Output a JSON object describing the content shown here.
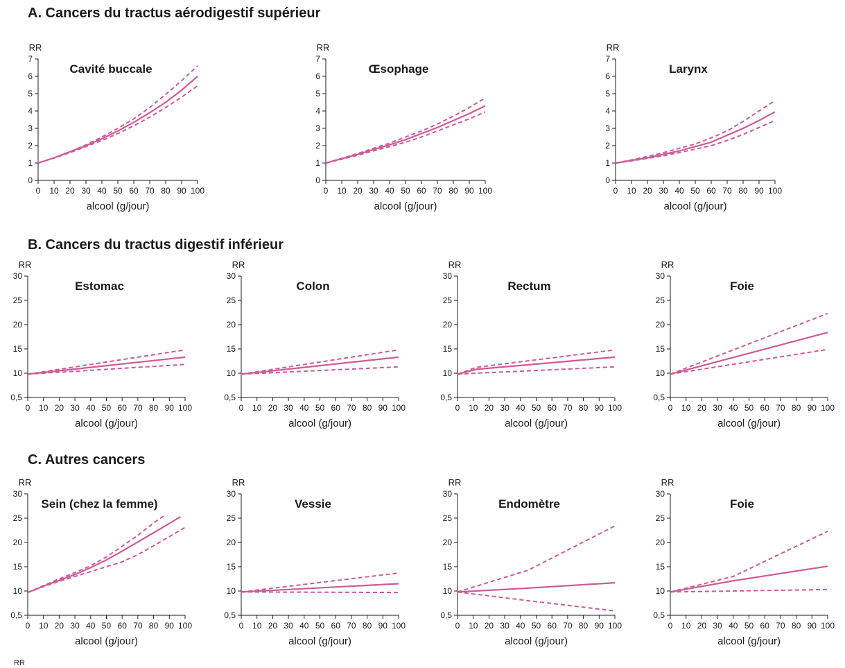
{
  "sections": {
    "a": "A. Cancers du tractus aérodigestif supérieur",
    "b": "B. Cancers du tractus digestif inférieur",
    "c": "C. Autres cancers"
  },
  "stray_label": "RR",
  "line_color": "#cc5a96",
  "chart_data": [
    {
      "id": "bouche",
      "section": "A",
      "type": "line",
      "title": "Cavité buccale",
      "ylabel": "RR",
      "xlabel": "alcool (g/jour)",
      "x": [
        0,
        10,
        20,
        30,
        40,
        50,
        60,
        70,
        80,
        90,
        100
      ],
      "xlim": [
        0,
        100
      ],
      "ylim": [
        0,
        7
      ],
      "yticks": [
        "0",
        "1",
        "2",
        "3",
        "4",
        "5",
        "6",
        "7"
      ],
      "xticks": [
        "0",
        "10",
        "20",
        "30",
        "40",
        "50",
        "60",
        "70",
        "80",
        "90",
        "100"
      ],
      "series": [
        {
          "style": "solid",
          "values": [
            1.0,
            1.3,
            1.65,
            2.0,
            2.4,
            2.85,
            3.35,
            3.9,
            4.5,
            5.2,
            6.0
          ]
        },
        {
          "style": "dashed",
          "values": [
            1.0,
            1.3,
            1.65,
            2.05,
            2.5,
            3.0,
            3.55,
            4.2,
            4.95,
            5.75,
            6.6
          ]
        },
        {
          "style": "dashed",
          "values": [
            1.0,
            1.28,
            1.6,
            1.95,
            2.3,
            2.7,
            3.15,
            3.65,
            4.2,
            4.8,
            5.45
          ]
        }
      ]
    },
    {
      "id": "oesophage",
      "section": "A",
      "type": "line",
      "title": "Œsophage",
      "ylabel": "RR",
      "xlabel": "alcool (g/jour)",
      "x": [
        0,
        10,
        20,
        30,
        40,
        50,
        60,
        70,
        80,
        90,
        100
      ],
      "xlim": [
        0,
        100
      ],
      "ylim": [
        0,
        7
      ],
      "yticks": [
        "0",
        "1",
        "2",
        "3",
        "4",
        "5",
        "6",
        "7"
      ],
      "xticks": [
        "0",
        "10",
        "20",
        "30",
        "40",
        "50",
        "60",
        "70",
        "80",
        "90",
        "100"
      ],
      "series": [
        {
          "style": "solid",
          "values": [
            1.0,
            1.25,
            1.5,
            1.78,
            2.05,
            2.35,
            2.7,
            3.05,
            3.45,
            3.85,
            4.3
          ]
        },
        {
          "style": "dashed",
          "values": [
            1.0,
            1.27,
            1.55,
            1.85,
            2.15,
            2.5,
            2.85,
            3.25,
            3.7,
            4.2,
            4.75
          ]
        },
        {
          "style": "dashed",
          "values": [
            1.0,
            1.22,
            1.45,
            1.7,
            1.95,
            2.2,
            2.5,
            2.85,
            3.2,
            3.55,
            3.95
          ]
        }
      ]
    },
    {
      "id": "larynx",
      "section": "A",
      "type": "line",
      "title": "Larynx",
      "ylabel": "RR",
      "xlabel": "alcool (g/jour)",
      "x": [
        0,
        10,
        20,
        30,
        40,
        50,
        60,
        70,
        80,
        90,
        100
      ],
      "xlim": [
        0,
        100
      ],
      "ylim": [
        0,
        7
      ],
      "yticks": [
        "0",
        "1",
        "2",
        "3",
        "4",
        "5",
        "6",
        "7"
      ],
      "xticks": [
        "0",
        "10",
        "20",
        "30",
        "40",
        "50",
        "60",
        "70",
        "80",
        "90",
        "100"
      ],
      "series": [
        {
          "style": "solid",
          "values": [
            1.0,
            1.15,
            1.3,
            1.5,
            1.7,
            1.95,
            2.2,
            2.6,
            3.0,
            3.45,
            3.95
          ]
        },
        {
          "style": "dashed",
          "values": [
            1.0,
            1.18,
            1.38,
            1.6,
            1.85,
            2.1,
            2.45,
            2.85,
            3.4,
            4.0,
            4.6
          ]
        },
        {
          "style": "dashed",
          "values": [
            1.0,
            1.12,
            1.27,
            1.42,
            1.6,
            1.8,
            2.0,
            2.3,
            2.65,
            3.05,
            3.45
          ]
        }
      ]
    },
    {
      "id": "estomac",
      "section": "B",
      "type": "line",
      "title": "Estomac",
      "ylabel": "RR",
      "xlabel": "alcool (g/jour)",
      "x": [
        0,
        100
      ],
      "xlim": [
        0,
        100
      ],
      "ylim": [
        5,
        30
      ],
      "yticks": [
        "0,5",
        "10",
        "15",
        "20",
        "25",
        "30"
      ],
      "xticks": [
        "0",
        "10",
        "20",
        "30",
        "40",
        "50",
        "60",
        "70",
        "80",
        "90",
        "100"
      ],
      "series": [
        {
          "style": "solid",
          "values": [
            9.8,
            13.3
          ]
        },
        {
          "style": "dashed",
          "values": [
            9.8,
            14.8
          ]
        },
        {
          "style": "dashed",
          "values": [
            9.8,
            11.8
          ]
        }
      ]
    },
    {
      "id": "colon",
      "section": "B",
      "type": "line",
      "title": "Colon",
      "ylabel": "RR",
      "xlabel": "alcool (g/jour)",
      "x": [
        0,
        100
      ],
      "xlim": [
        0,
        100
      ],
      "ylim": [
        5,
        30
      ],
      "yticks": [
        "0,5",
        "10",
        "15",
        "20",
        "25",
        "30"
      ],
      "xticks": [
        "0",
        "10",
        "20",
        "30",
        "40",
        "50",
        "60",
        "70",
        "80",
        "90",
        "100"
      ],
      "series": [
        {
          "style": "solid",
          "values": [
            9.8,
            13.3
          ]
        },
        {
          "style": "dashed",
          "values": [
            9.8,
            14.8
          ]
        },
        {
          "style": "dashed",
          "values": [
            9.8,
            11.3
          ]
        }
      ]
    },
    {
      "id": "rectum",
      "section": "B",
      "type": "line",
      "title": "Rectum",
      "ylabel": "RR",
      "xlabel": "alcool (g/jour)",
      "x": [
        0,
        12,
        100
      ],
      "xlim": [
        0,
        100
      ],
      "ylim": [
        5,
        30
      ],
      "yticks": [
        "0,5",
        "10",
        "15",
        "20",
        "25",
        "30"
      ],
      "xticks": [
        "0",
        "10",
        "20",
        "30",
        "40",
        "50",
        "60",
        "70",
        "80",
        "90",
        "100"
      ],
      "series": [
        {
          "style": "solid",
          "values": [
            9.8,
            10.8,
            13.3
          ]
        },
        {
          "style": "dashed",
          "values": [
            9.8,
            11.2,
            14.8
          ]
        },
        {
          "style": "dashed",
          "values": [
            9.8,
            10.0,
            11.3
          ]
        }
      ]
    },
    {
      "id": "foie_b",
      "section": "B",
      "type": "line",
      "title": "Foie",
      "ylabel": "RR",
      "xlabel": "alcool (g/jour)",
      "x": [
        0,
        100
      ],
      "xlim": [
        0,
        100
      ],
      "ylim": [
        5,
        30
      ],
      "yticks": [
        "0,5",
        "10",
        "15",
        "20",
        "25",
        "30"
      ],
      "xticks": [
        "0",
        "10",
        "20",
        "30",
        "40",
        "50",
        "60",
        "70",
        "80",
        "90",
        "100"
      ],
      "series": [
        {
          "style": "solid",
          "values": [
            9.8,
            18.4
          ]
        },
        {
          "style": "dashed",
          "values": [
            9.8,
            22.3
          ]
        },
        {
          "style": "dashed",
          "values": [
            9.8,
            14.9
          ]
        }
      ]
    },
    {
      "id": "sein",
      "section": "C",
      "type": "line",
      "title": "Sein (chez la femme)",
      "ylabel": "RR",
      "xlabel": "alcool (g/jour)",
      "xlim": [
        0,
        100
      ],
      "ylim": [
        5,
        30
      ],
      "yticks": [
        "0,5",
        "10",
        "15",
        "20",
        "25",
        "30"
      ],
      "xticks": [
        "0",
        "10",
        "20",
        "30",
        "40",
        "50",
        "60",
        "70",
        "80",
        "90",
        "100"
      ],
      "series": [
        {
          "style": "solid",
          "x": [
            0,
            10,
            20,
            30,
            40,
            50,
            60,
            70,
            80,
            90,
            97
          ],
          "values": [
            9.7,
            11.0,
            12.2,
            13.4,
            14.8,
            16.4,
            18.2,
            20.1,
            22.0,
            23.9,
            25.3
          ]
        },
        {
          "style": "dashed",
          "x": [
            0,
            10,
            20,
            30,
            40,
            50,
            60,
            70,
            80,
            87
          ],
          "values": [
            9.7,
            11.1,
            12.5,
            13.8,
            15.2,
            17.0,
            19.2,
            21.5,
            24.0,
            25.6
          ]
        },
        {
          "style": "dashed",
          "x": [
            0,
            10,
            20,
            30,
            40,
            50,
            60,
            70,
            80,
            90,
            100
          ],
          "values": [
            9.7,
            10.9,
            12.0,
            13.0,
            14.0,
            15.0,
            16.0,
            17.5,
            19.3,
            21.2,
            23.1
          ]
        }
      ]
    },
    {
      "id": "vessie",
      "section": "C",
      "type": "line",
      "title": "Vessie",
      "ylabel": "RR",
      "xlabel": "alcool (g/jour)",
      "x": [
        0,
        100
      ],
      "xlim": [
        0,
        100
      ],
      "ylim": [
        5,
        30
      ],
      "yticks": [
        "0,5",
        "10",
        "15",
        "20",
        "25",
        "30"
      ],
      "xticks": [
        "0",
        "10",
        "20",
        "30",
        "40",
        "50",
        "60",
        "70",
        "80",
        "90",
        "100"
      ],
      "series": [
        {
          "style": "solid",
          "values": [
            9.8,
            11.5
          ]
        },
        {
          "style": "dashed",
          "values": [
            9.8,
            13.7
          ]
        },
        {
          "style": "dashed",
          "values": [
            9.8,
            9.7
          ]
        }
      ]
    },
    {
      "id": "endometre",
      "section": "C",
      "type": "line",
      "title": "Endomètre",
      "ylabel": "RR",
      "xlabel": "alcool (g/jour)",
      "x": [
        0,
        45,
        100
      ],
      "xlim": [
        0,
        100
      ],
      "ylim": [
        5,
        30
      ],
      "yticks": [
        "0,5",
        "10",
        "15",
        "20",
        "25",
        "30"
      ],
      "xticks": [
        "0",
        "10",
        "20",
        "30",
        "40",
        "50",
        "60",
        "70",
        "80",
        "90",
        "100"
      ],
      "series": [
        {
          "style": "solid",
          "values": [
            9.8,
            10.6,
            11.7
          ]
        },
        {
          "style": "dashed",
          "values": [
            9.8,
            14.3,
            23.4
          ]
        },
        {
          "style": "dashed",
          "values": [
            9.8,
            8.0,
            5.9
          ]
        }
      ]
    },
    {
      "id": "foie_c",
      "section": "C",
      "type": "line",
      "title": "Foie",
      "ylabel": "RR",
      "xlabel": "alcool (g/jour)",
      "x": [
        0,
        40,
        100
      ],
      "xlim": [
        0,
        100
      ],
      "ylim": [
        5,
        30
      ],
      "yticks": [
        "0,5",
        "10",
        "15",
        "20",
        "25",
        "30"
      ],
      "xticks": [
        "0",
        "10",
        "20",
        "30",
        "40",
        "50",
        "60",
        "70",
        "80",
        "90",
        "100"
      ],
      "series": [
        {
          "style": "solid",
          "values": [
            9.8,
            12.1,
            15.1
          ]
        },
        {
          "style": "dashed",
          "values": [
            9.8,
            13.0,
            22.3
          ]
        },
        {
          "style": "dashed",
          "values": [
            9.8,
            10.0,
            10.3
          ]
        }
      ]
    }
  ]
}
